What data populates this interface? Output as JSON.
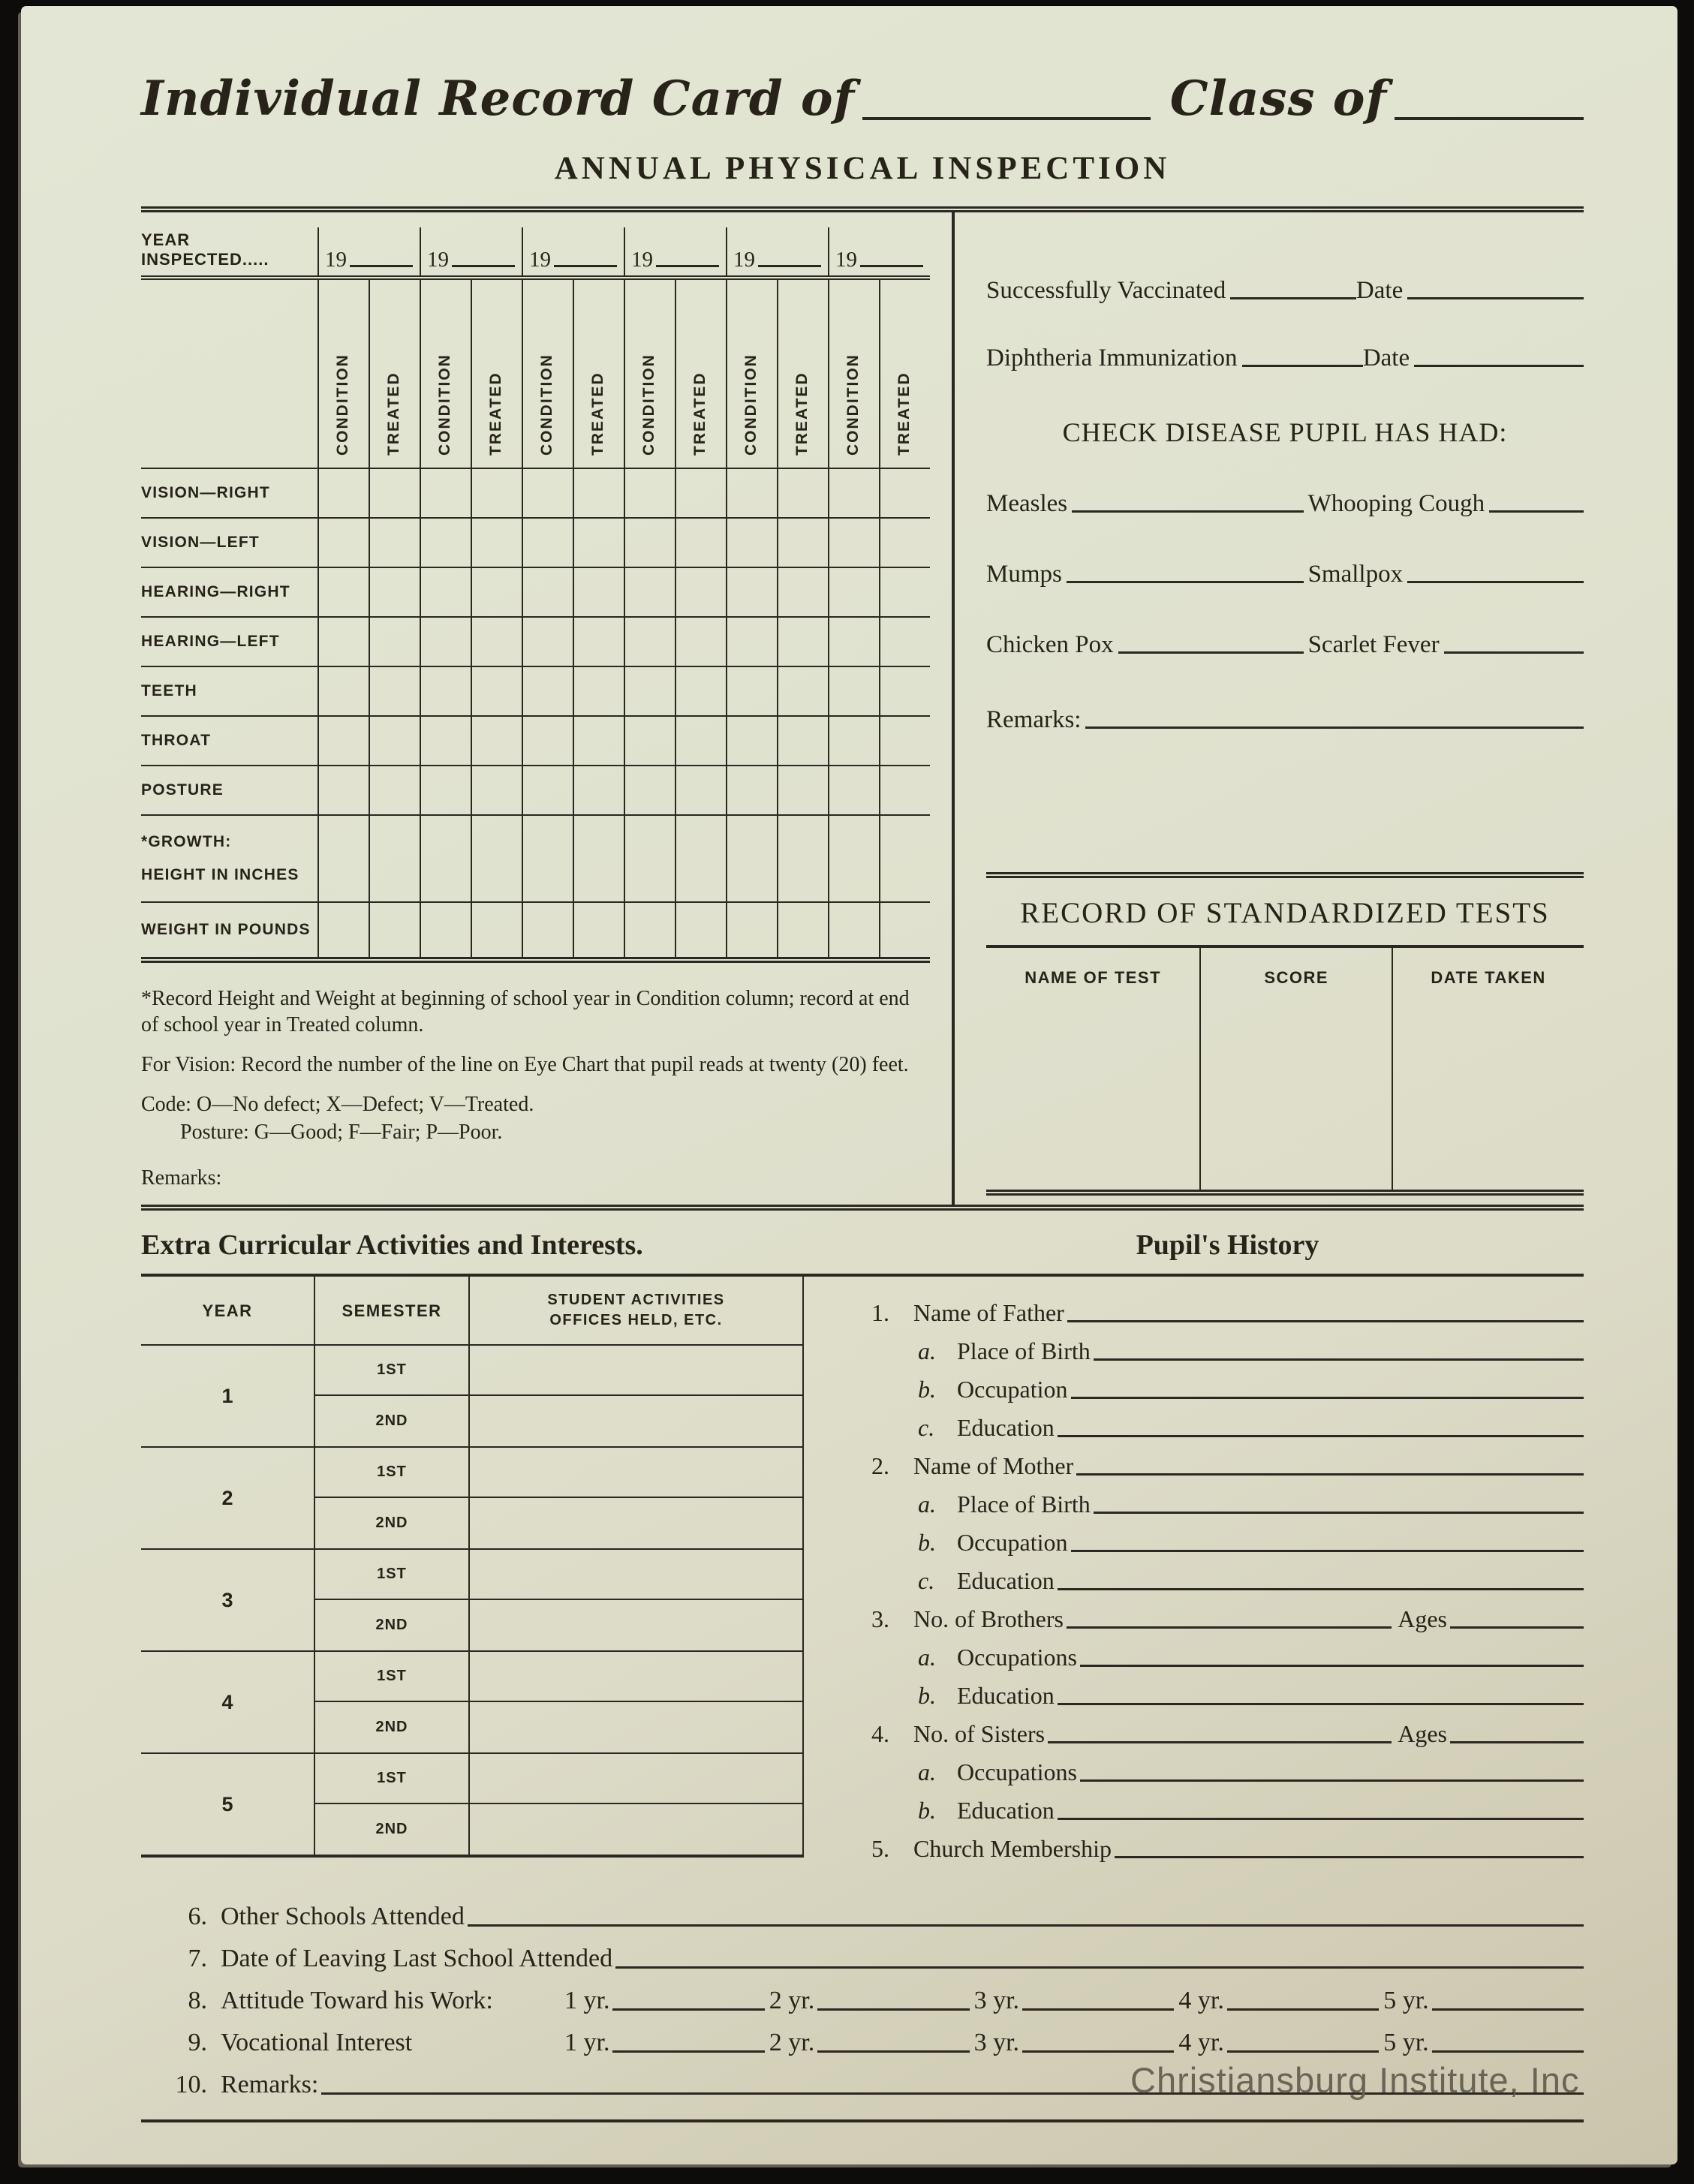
{
  "document": {
    "title_prefix": "Individual Record Card of",
    "class_of_label": "Class of",
    "section_heading": "ANNUAL PHYSICAL INSPECTION",
    "watermark": "Christiansburg Institute, Inc"
  },
  "inspection_table": {
    "year_inspected_label": "YEAR INSPECTED.....",
    "year_prefix": "19",
    "condition_label": "CONDITION",
    "treated_label": "TREATED",
    "row_labels": [
      "VISION—RIGHT",
      "VISION—LEFT",
      "HEARING—RIGHT",
      "HEARING—LEFT",
      "TEETH",
      "THROAT",
      "POSTURE"
    ],
    "growth_label": "*GROWTH:",
    "height_label": "HEIGHT IN INCHES",
    "weight_label": "WEIGHT IN POUNDS"
  },
  "footnotes": {
    "growth_note": "*Record Height and Weight at beginning of school year in Condition column; record at end of school year in Treated column.",
    "vision_note": "For Vision:  Record the number of the line on Eye Chart that pupil reads at twenty (20) feet.",
    "code_note": "Code:  O—No defect; X—Defect; V—Treated.",
    "posture_note": "Posture:  G—Good; F—Fair; P—Poor.",
    "remarks_label": "Remarks:"
  },
  "health": {
    "vaccinated_label": "Successfully Vaccinated",
    "date_label": "Date",
    "diphtheria_label": "Diphtheria  Immunization",
    "check_heading": "CHECK DISEASE PUPIL HAS HAD:",
    "pairs": [
      [
        "Measles",
        "Whooping Cough"
      ],
      [
        "Mumps",
        "Smallpox"
      ],
      [
        "Chicken Pox",
        "Scarlet Fever"
      ]
    ],
    "remarks_label": "Remarks:"
  },
  "tests": {
    "heading": "RECORD OF STANDARDIZED TESTS",
    "col_name": "NAME OF TEST",
    "col_score": "SCORE",
    "col_date": "DATE TAKEN"
  },
  "activities": {
    "heading": "Extra Curricular Activities and Interests.",
    "col_year": "YEAR",
    "col_semester": "SEMESTER",
    "col_act_line1": "STUDENT ACTIVITIES",
    "col_act_line2": "OFFICES HELD, ETC.",
    "years": [
      "1",
      "2",
      "3",
      "4",
      "5"
    ],
    "sem_first": "1ST",
    "sem_second": "2ND"
  },
  "history": {
    "heading": "Pupil's History",
    "ages_label": "Ages",
    "items": [
      {
        "num": "1.",
        "label": "Name of Father"
      },
      {
        "letter": "a.",
        "label": "Place of Birth"
      },
      {
        "letter": "b.",
        "label": "Occupation"
      },
      {
        "letter": "c.",
        "label": "Education"
      },
      {
        "num": "2.",
        "label": "Name of Mother"
      },
      {
        "letter": "a.",
        "label": "Place of Birth"
      },
      {
        "letter": "b.",
        "label": "Occupation"
      },
      {
        "letter": "c.",
        "label": "Education"
      },
      {
        "num": "3.",
        "label": "No. of Brothers",
        "ages": "Ages"
      },
      {
        "letter": "a.",
        "label": "Occupations"
      },
      {
        "letter": "b.",
        "label": "Education"
      },
      {
        "num": "4.",
        "label": "No. of Sisters",
        "ages": "Ages"
      },
      {
        "letter": "a.",
        "label": "Occupations"
      },
      {
        "letter": "b.",
        "label": "Education"
      },
      {
        "num": "5.",
        "label": "Church Membership"
      }
    ]
  },
  "final": {
    "items": [
      {
        "num": "6.",
        "label": "Other Schools Attended"
      },
      {
        "num": "7.",
        "label": "Date of Leaving Last School Attended"
      },
      {
        "num": "8.",
        "label": "Attitude Toward his Work:",
        "yrs": [
          "1 yr.",
          "2 yr.",
          "3 yr.",
          "4 yr.",
          "5 yr."
        ]
      },
      {
        "num": "9.",
        "label": "Vocational Interest",
        "yrs": [
          "1 yr.",
          "2 yr.",
          "3 yr.",
          "4 yr.",
          "5 yr."
        ]
      },
      {
        "num": "10.",
        "label": "Remarks:"
      }
    ]
  },
  "colors": {
    "card_background": "#e1e3d0",
    "ink": "#272319",
    "rule_line": "#2b2721",
    "watermark_text": "#645f51",
    "photo_backdrop": "#0d0c0a"
  }
}
